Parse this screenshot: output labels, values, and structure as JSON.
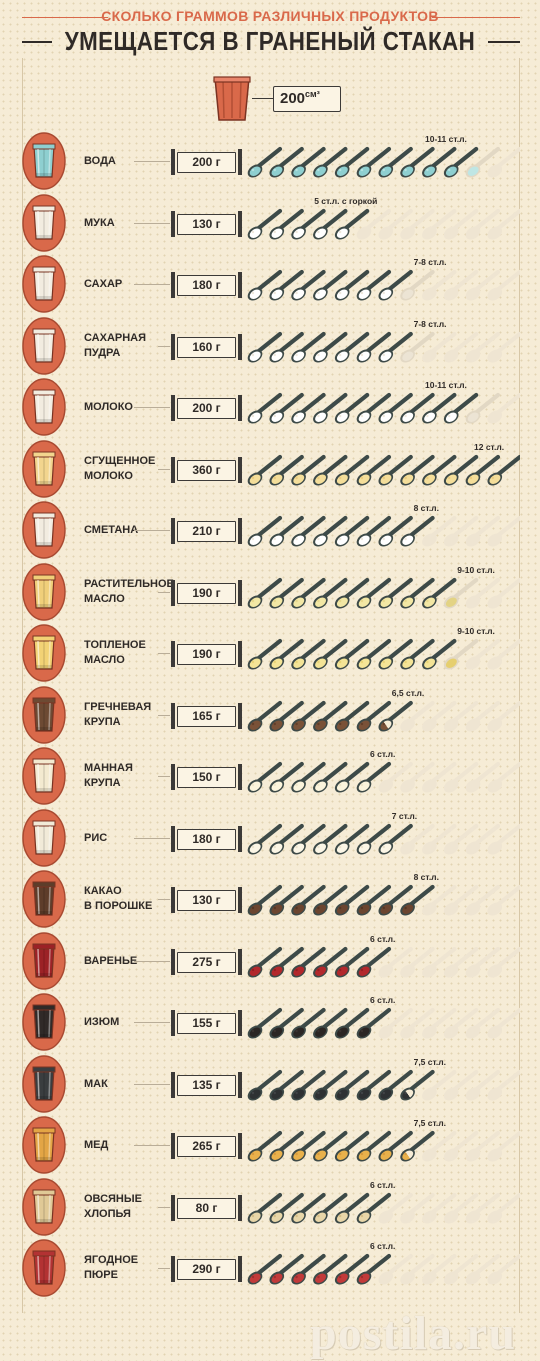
{
  "header": {
    "subtitle": "СКОЛЬКО ГРАММОВ РАЗЛИЧНЫХ ПРОДУКТОВ",
    "title": "УМЕЩАЕТСЯ В ГРАНЕНЫЙ СТАКАН"
  },
  "volume": {
    "value": "200",
    "unit": "см³"
  },
  "colors": {
    "accent": "#d9694a",
    "spoon_handle": "#3d4a48",
    "ghost_spoon": "#efe5d2"
  },
  "items": [
    {
      "name": [
        "ВОДА"
      ],
      "weight": "200 г",
      "spoons_label": "10-11 ст.л.",
      "full": 10,
      "tip": "light",
      "total": 12,
      "fill": "#8ecfd0",
      "fill2": "#bfe6e4",
      "glass": "#8ecfd0"
    },
    {
      "name": [
        "МУКА"
      ],
      "weight": "130 г",
      "spoons_label": "5 ст.л. с горкой",
      "full": 5,
      "tip": "none",
      "total": 12,
      "fill": "#ffffff",
      "fill2": "#ece4d4",
      "glass": "#f2ece0"
    },
    {
      "name": [
        "САХАР"
      ],
      "weight": "180 г",
      "spoons_label": "7-8 ст.л.",
      "full": 7,
      "tip": "light",
      "total": 12,
      "fill": "#ffffff",
      "fill2": "#ece4d4",
      "glass": "#f2ece0"
    },
    {
      "name": [
        "САХАРНАЯ",
        "ПУДРА"
      ],
      "weight": "160 г",
      "spoons_label": "7-8 ст.л.",
      "full": 7,
      "tip": "light",
      "total": 12,
      "fill": "#ffffff",
      "fill2": "#ece4d4",
      "glass": "#f2ece0"
    },
    {
      "name": [
        "МОЛОКО"
      ],
      "weight": "200 г",
      "spoons_label": "10-11 ст.л.",
      "full": 10,
      "tip": "light",
      "total": 12,
      "fill": "#ffffff",
      "fill2": "#ece4d4",
      "glass": "#f2ece0"
    },
    {
      "name": [
        "СГУЩЕННОЕ",
        "МОЛОКО"
      ],
      "weight": "360 г",
      "spoons_label": "12 ст.л.",
      "full": 12,
      "tip": "none",
      "total": 12,
      "fill": "#f4de9a",
      "fill2": "#e8c778",
      "glass": "#f2d58e"
    },
    {
      "name": [
        "СМЕТАНА"
      ],
      "weight": "210 г",
      "spoons_label": "8 ст.л.",
      "full": 8,
      "tip": "none",
      "total": 12,
      "fill": "#ffffff",
      "fill2": "#ece4d4",
      "glass": "#f2ece0"
    },
    {
      "name": [
        "РАСТИТЕЛЬНОЕ",
        "МАСЛО"
      ],
      "weight": "190 г",
      "spoons_label": "9-10 ст.л.",
      "full": 9,
      "tip": "light",
      "total": 12,
      "fill": "#f2e7a4",
      "fill2": "#e3d384",
      "glass": "#f0cf7a"
    },
    {
      "name": [
        "ТОПЛЕНОЕ",
        "МАСЛО"
      ],
      "weight": "190 г",
      "spoons_label": "9-10 ст.л.",
      "full": 9,
      "tip": "light",
      "total": 12,
      "fill": "#f4e496",
      "fill2": "#e6cf6f",
      "glass": "#f2d275"
    },
    {
      "name": [
        "ГРЕЧНЕВАЯ",
        "КРУПА"
      ],
      "weight": "165 г",
      "spoons_label": "6,5 ст.л.",
      "full": 6,
      "tip": "half",
      "total": 12,
      "fill": "#7a5238",
      "fill2": "#5c3b27",
      "glass": "#6d4a33"
    },
    {
      "name": [
        "МАННАЯ",
        "КРУПА"
      ],
      "weight": "150 г",
      "spoons_label": "6 ст.л.",
      "full": 6,
      "tip": "none",
      "total": 12,
      "fill": "#fbf4dc",
      "fill2": "#ece2c4",
      "glass": "#f3ead0"
    },
    {
      "name": [
        "РИС"
      ],
      "weight": "180 г",
      "spoons_label": "7 ст.л.",
      "full": 7,
      "tip": "none",
      "total": 12,
      "fill": "#fbf6e6",
      "fill2": "#e9e0c9",
      "glass": "#f1ead8"
    },
    {
      "name": [
        "КАКАО",
        "В ПОРОШКЕ"
      ],
      "weight": "130 г",
      "spoons_label": "8 ст.л.",
      "full": 8,
      "tip": "none",
      "total": 12,
      "fill": "#6b4530",
      "fill2": "#4f3222",
      "glass": "#5e3d2a"
    },
    {
      "name": [
        "ВАРЕНЬЕ"
      ],
      "weight": "275 г",
      "spoons_label": "6 ст.л.",
      "full": 6,
      "tip": "none",
      "total": 12,
      "fill": "#b3282c",
      "fill2": "#8c1d21",
      "glass": "#9c2226"
    },
    {
      "name": [
        "ИЗЮМ"
      ],
      "weight": "155 г",
      "spoons_label": "6 ст.л.",
      "full": 6,
      "tip": "none",
      "total": 12,
      "fill": "#2b2624",
      "fill2": "#3f3633",
      "glass": "#302a28"
    },
    {
      "name": [
        "МАК"
      ],
      "weight": "135 г",
      "spoons_label": "7,5 ст.л.",
      "full": 7,
      "tip": "half",
      "total": 12,
      "fill": "#2e3133",
      "fill2": "#45494b",
      "glass": "#3a3d3f"
    },
    {
      "name": [
        "МЕД"
      ],
      "weight": "265 г",
      "spoons_label": "7,5 ст.л.",
      "full": 7,
      "tip": "half",
      "total": 12,
      "fill": "#e9b14b",
      "fill2": "#d2953a",
      "glass": "#e3a545"
    },
    {
      "name": [
        "ОВСЯНЫЕ",
        "ХЛОПЬЯ"
      ],
      "weight": "80 г",
      "spoons_label": "6 ст.л.",
      "full": 6,
      "tip": "none",
      "total": 12,
      "fill": "#e8d6a8",
      "fill2": "#cfb880",
      "glass": "#e0c996"
    },
    {
      "name": [
        "ЯГОДНОЕ",
        "ПЮРЕ"
      ],
      "weight": "290 г",
      "spoons_label": "6 ст.л.",
      "full": 6,
      "tip": "none",
      "total": 12,
      "fill": "#c23a3a",
      "fill2": "#962a2b",
      "glass": "#b33233"
    }
  ],
  "watermark": "postila.ru"
}
